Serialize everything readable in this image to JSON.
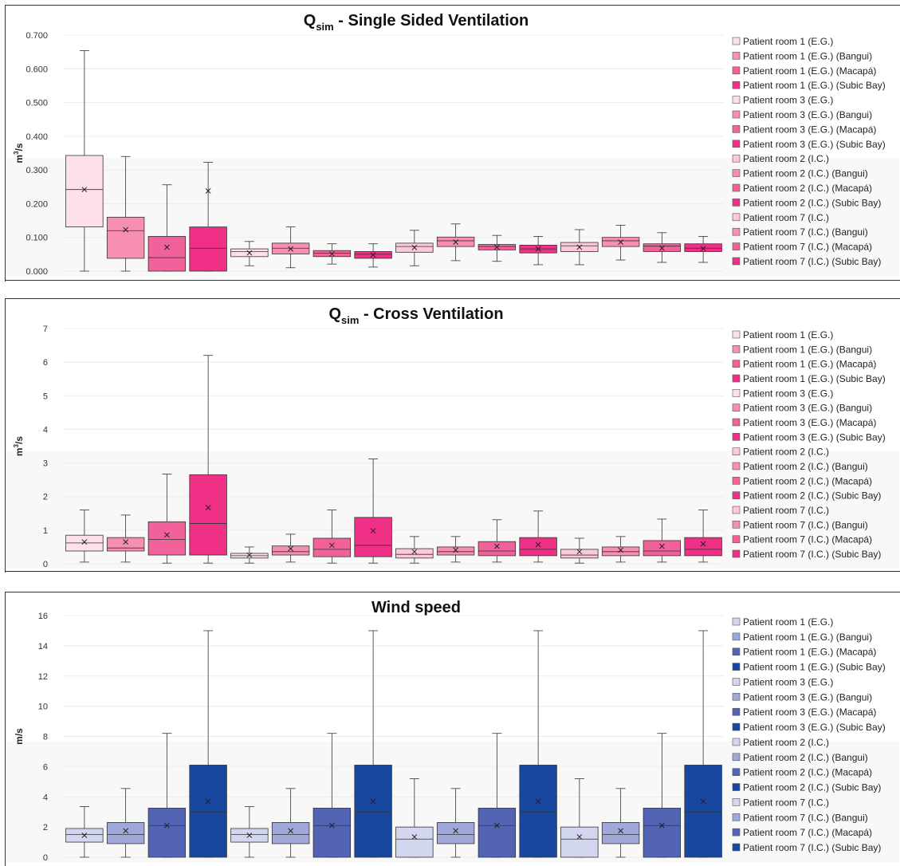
{
  "chart_data": [
    {
      "type": "box",
      "title_main": "Q",
      "title_sub": "sim",
      "title_rest": " - Single Sided Ventilation",
      "ylabel_main": "m",
      "ylabel_sup": "3",
      "ylabel_rest": "/s",
      "ylim": [
        0,
        0.7
      ],
      "yticks": [
        0,
        0.1,
        0.2,
        0.3,
        0.4,
        0.5,
        0.6,
        0.7
      ],
      "ytick_labels": [
        "0.000",
        "0.100",
        "0.200",
        "0.300",
        "0.400",
        "0.500",
        "0.600",
        "0.700"
      ],
      "legend_position": "right",
      "series": [
        {
          "name": "Patient room 1 (E.G.)",
          "color": "#fde0e8",
          "min": 0.0,
          "q1": 0.131,
          "median": 0.242,
          "q3": 0.343,
          "max": 0.654,
          "mean": 0.242
        },
        {
          "name": "Patient room 1 (E.G.) (Bangui)",
          "color": "#f78fb0",
          "min": 0.0,
          "q1": 0.038,
          "median": 0.12,
          "q3": 0.16,
          "max": 0.34,
          "mean": 0.123
        },
        {
          "name": "Patient room 1 (E.G.) (Macapá)",
          "color": "#f2629a",
          "min": 0.0,
          "q1": 0.0,
          "median": 0.04,
          "q3": 0.103,
          "max": 0.256,
          "mean": 0.071
        },
        {
          "name": "Patient room 1 (E.G.) (Subic Bay)",
          "color": "#ef3086",
          "min": 0.0,
          "q1": 0.0,
          "median": 0.068,
          "q3": 0.131,
          "max": 0.323,
          "mean": 0.238
        },
        {
          "name": "Patient room 3 (E.G.)",
          "color": "#fde0e8",
          "min": 0.016,
          "q1": 0.043,
          "median": 0.058,
          "q3": 0.066,
          "max": 0.088,
          "mean": 0.054
        },
        {
          "name": "Patient room 3 (E.G.) (Bangui)",
          "color": "#f78fb0",
          "min": 0.01,
          "q1": 0.051,
          "median": 0.068,
          "q3": 0.083,
          "max": 0.131,
          "mean": 0.066
        },
        {
          "name": "Patient room 3 (E.G.) (Macapá)",
          "color": "#f2629a",
          "min": 0.021,
          "q1": 0.043,
          "median": 0.053,
          "q3": 0.061,
          "max": 0.081,
          "mean": 0.051
        },
        {
          "name": "Patient room 3 (E.G.) (Subic Bay)",
          "color": "#ef3086",
          "min": 0.012,
          "q1": 0.038,
          "median": 0.05,
          "q3": 0.058,
          "max": 0.081,
          "mean": 0.048
        },
        {
          "name": "Patient room 2 (I.C.)",
          "color": "#fcc8da",
          "min": 0.016,
          "q1": 0.056,
          "median": 0.073,
          "q3": 0.083,
          "max": 0.121,
          "mean": 0.07
        },
        {
          "name": "Patient room 2 (I.C.) (Bangui)",
          "color": "#f78fb0",
          "min": 0.031,
          "q1": 0.073,
          "median": 0.09,
          "q3": 0.101,
          "max": 0.14,
          "mean": 0.086
        },
        {
          "name": "Patient room 2 (I.C.) (Macapá)",
          "color": "#f2629a",
          "min": 0.029,
          "q1": 0.063,
          "median": 0.073,
          "q3": 0.079,
          "max": 0.106,
          "mean": 0.071
        },
        {
          "name": "Patient room 2 (I.C.) (Subic Bay)",
          "color": "#ef3086",
          "min": 0.019,
          "q1": 0.054,
          "median": 0.066,
          "q3": 0.077,
          "max": 0.103,
          "mean": 0.066
        },
        {
          "name": "Patient room 7 (I.C.)",
          "color": "#fcc8da",
          "min": 0.019,
          "q1": 0.058,
          "median": 0.075,
          "q3": 0.085,
          "max": 0.123,
          "mean": 0.071
        },
        {
          "name": "Patient room 7 (I.C.) (Bangui)",
          "color": "#f78fb0",
          "min": 0.033,
          "q1": 0.073,
          "median": 0.09,
          "q3": 0.1,
          "max": 0.136,
          "mean": 0.086
        },
        {
          "name": "Patient room 7 (I.C.) (Macapá)",
          "color": "#f2629a",
          "min": 0.026,
          "q1": 0.058,
          "median": 0.074,
          "q3": 0.081,
          "max": 0.114,
          "mean": 0.068
        },
        {
          "name": "Patient room 7 (I.C.) (Subic Bay)",
          "color": "#ef3086",
          "min": 0.026,
          "q1": 0.058,
          "median": 0.068,
          "q3": 0.081,
          "max": 0.103,
          "mean": 0.067
        }
      ]
    },
    {
      "type": "box",
      "title_main": "Q",
      "title_sub": "sim",
      "title_rest": " - Cross Ventilation",
      "ylabel_main": "m",
      "ylabel_sup": "3",
      "ylabel_rest": "/s",
      "ylim": [
        0,
        7
      ],
      "yticks": [
        0,
        1,
        2,
        3,
        4,
        5,
        6,
        7
      ],
      "ytick_labels": [
        "0",
        "1",
        "2",
        "3",
        "4",
        "5",
        "6",
        "7"
      ],
      "legend_position": "right",
      "series": [
        {
          "name": "Patient room 1 (E.G.)",
          "color": "#fde0e8",
          "min": 0.05,
          "q1": 0.38,
          "median": 0.62,
          "q3": 0.85,
          "max": 1.6,
          "mean": 0.65
        },
        {
          "name": "Patient room 1 (E.G.) (Bangui)",
          "color": "#f78fb0",
          "min": 0.05,
          "q1": 0.38,
          "median": 0.47,
          "q3": 0.78,
          "max": 1.45,
          "mean": 0.65
        },
        {
          "name": "Patient room 1 (E.G.) (Macapá)",
          "color": "#f2629a",
          "min": 0.02,
          "q1": 0.26,
          "median": 0.72,
          "q3": 1.25,
          "max": 2.67,
          "mean": 0.86
        },
        {
          "name": "Patient room 1 (E.G.) (Subic Bay)",
          "color": "#ef3086",
          "min": 0.02,
          "q1": 0.26,
          "median": 1.2,
          "q3": 2.65,
          "max": 6.2,
          "mean": 1.67
        },
        {
          "name": "Patient room 3 (E.G.)",
          "color": "#fde0e8",
          "min": 0.02,
          "q1": 0.17,
          "median": 0.24,
          "q3": 0.31,
          "max": 0.5,
          "mean": 0.26
        },
        {
          "name": "Patient room 3 (E.G.) (Bangui)",
          "color": "#f78fb0",
          "min": 0.05,
          "q1": 0.26,
          "median": 0.36,
          "q3": 0.53,
          "max": 0.88,
          "mean": 0.45
        },
        {
          "name": "Patient room 3 (E.G.) (Macapá)",
          "color": "#f2629a",
          "min": 0.02,
          "q1": 0.21,
          "median": 0.43,
          "q3": 0.76,
          "max": 1.6,
          "mean": 0.55
        },
        {
          "name": "Patient room 3 (E.G.) (Subic Bay)",
          "color": "#ef3086",
          "min": 0.02,
          "q1": 0.21,
          "median": 0.55,
          "q3": 1.38,
          "max": 3.12,
          "mean": 0.98
        },
        {
          "name": "Patient room 2 (I.C.)",
          "color": "#fcc8da",
          "min": 0.02,
          "q1": 0.17,
          "median": 0.28,
          "q3": 0.45,
          "max": 0.81,
          "mean": 0.36
        },
        {
          "name": "Patient room 2 (I.C.) (Bangui)",
          "color": "#f78fb0",
          "min": 0.05,
          "q1": 0.26,
          "median": 0.36,
          "q3": 0.5,
          "max": 0.81,
          "mean": 0.41
        },
        {
          "name": "Patient room 2 (I.C.) (Macapá)",
          "color": "#f2629a",
          "min": 0.05,
          "q1": 0.24,
          "median": 0.38,
          "q3": 0.66,
          "max": 1.31,
          "mean": 0.52
        },
        {
          "name": "Patient room 2 (I.C.) (Subic Bay)",
          "color": "#ef3086",
          "min": 0.05,
          "q1": 0.24,
          "median": 0.43,
          "q3": 0.78,
          "max": 1.57,
          "mean": 0.57
        },
        {
          "name": "Patient room 7 (I.C.)",
          "color": "#fcc8da",
          "min": 0.02,
          "q1": 0.17,
          "median": 0.26,
          "q3": 0.43,
          "max": 0.76,
          "mean": 0.36
        },
        {
          "name": "Patient room 7 (I.C.) (Bangui)",
          "color": "#f78fb0",
          "min": 0.05,
          "q1": 0.24,
          "median": 0.36,
          "q3": 0.5,
          "max": 0.81,
          "mean": 0.41
        },
        {
          "name": "Patient room 7 (I.C.) (Macapá)",
          "color": "#f2629a",
          "min": 0.05,
          "q1": 0.24,
          "median": 0.38,
          "q3": 0.69,
          "max": 1.33,
          "mean": 0.52
        },
        {
          "name": "Patient room 7 (I.C.) (Subic Bay)",
          "color": "#ef3086",
          "min": 0.05,
          "q1": 0.24,
          "median": 0.43,
          "q3": 0.78,
          "max": 1.6,
          "mean": 0.59
        }
      ]
    },
    {
      "type": "box",
      "title_main": "Wind speed",
      "title_sub": "",
      "title_rest": "",
      "ylabel_main": "m/s",
      "ylabel_sup": "",
      "ylabel_rest": "",
      "ylim": [
        0,
        16
      ],
      "yticks": [
        0,
        2,
        4,
        6,
        8,
        10,
        12,
        14,
        16
      ],
      "ytick_labels": [
        "0",
        "2",
        "4",
        "6",
        "8",
        "10",
        "12",
        "14",
        "16"
      ],
      "legend_position": "right",
      "series": [
        {
          "name": "Patient room 1 (E.G.)",
          "color": "#d3d6ef",
          "min": 0.0,
          "q1": 1.0,
          "median": 1.5,
          "q3": 1.9,
          "max": 3.35,
          "mean": 1.45
        },
        {
          "name": "Patient room 1 (E.G.) (Bangui)",
          "color": "#9fa8d8",
          "min": 0.0,
          "q1": 0.9,
          "median": 1.5,
          "q3": 2.3,
          "max": 4.55,
          "mean": 1.75
        },
        {
          "name": "Patient room 1 (E.G.) (Macapá)",
          "color": "#5264b3",
          "min": 0.0,
          "q1": 0.0,
          "median": 2.1,
          "q3": 3.25,
          "max": 8.2,
          "mean": 2.1
        },
        {
          "name": "Patient room 1 (E.G.) (Subic Bay)",
          "color": "#17479e",
          "min": 0.0,
          "q1": 0.0,
          "median": 3.0,
          "q3": 6.1,
          "max": 15.0,
          "mean": 3.7
        },
        {
          "name": "Patient room 3 (E.G.)",
          "color": "#d3d6ef",
          "min": 0.0,
          "q1": 1.0,
          "median": 1.5,
          "q3": 1.9,
          "max": 3.35,
          "mean": 1.45
        },
        {
          "name": "Patient room 3 (E.G.) (Bangui)",
          "color": "#9fa8d8",
          "min": 0.0,
          "q1": 0.9,
          "median": 1.5,
          "q3": 2.3,
          "max": 4.55,
          "mean": 1.75
        },
        {
          "name": "Patient room 3 (E.G.) (Macapá)",
          "color": "#5264b3",
          "min": 0.0,
          "q1": 0.0,
          "median": 2.1,
          "q3": 3.25,
          "max": 8.2,
          "mean": 2.1
        },
        {
          "name": "Patient room 3 (E.G.) (Subic Bay)",
          "color": "#17479e",
          "min": 0.0,
          "q1": 0.0,
          "median": 3.0,
          "q3": 6.1,
          "max": 15.0,
          "mean": 3.7
        },
        {
          "name": "Patient room 2 (I.C.)",
          "color": "#d3d6ef",
          "min": 0.0,
          "q1": 0.0,
          "median": 1.2,
          "q3": 2.0,
          "max": 5.2,
          "mean": 1.35
        },
        {
          "name": "Patient room 2 (I.C.) (Bangui)",
          "color": "#9fa8d8",
          "min": 0.0,
          "q1": 0.9,
          "median": 1.5,
          "q3": 2.3,
          "max": 4.55,
          "mean": 1.75
        },
        {
          "name": "Patient room 2 (I.C.) (Macapá)",
          "color": "#5264b3",
          "min": 0.0,
          "q1": 0.0,
          "median": 2.1,
          "q3": 3.25,
          "max": 8.2,
          "mean": 2.1
        },
        {
          "name": "Patient room 2 (I.C.) (Subic Bay)",
          "color": "#17479e",
          "min": 0.0,
          "q1": 0.0,
          "median": 3.0,
          "q3": 6.1,
          "max": 15.0,
          "mean": 3.7
        },
        {
          "name": "Patient room 7 (I.C.)",
          "color": "#d3d6ef",
          "min": 0.0,
          "q1": 0.0,
          "median": 1.2,
          "q3": 2.0,
          "max": 5.2,
          "mean": 1.35
        },
        {
          "name": "Patient room 7 (I.C.) (Bangui)",
          "color": "#9fa8d8",
          "min": 0.0,
          "q1": 0.9,
          "median": 1.5,
          "q3": 2.3,
          "max": 4.55,
          "mean": 1.75
        },
        {
          "name": "Patient room 7 (I.C.) (Macapá)",
          "color": "#5264b3",
          "min": 0.0,
          "q1": 0.0,
          "median": 2.1,
          "q3": 3.25,
          "max": 8.2,
          "mean": 2.1
        },
        {
          "name": "Patient room 7 (I.C.) (Subic Bay)",
          "color": "#17479e",
          "min": 0.0,
          "q1": 0.0,
          "median": 3.0,
          "q3": 6.1,
          "max": 15.0,
          "mean": 3.7
        }
      ]
    }
  ]
}
